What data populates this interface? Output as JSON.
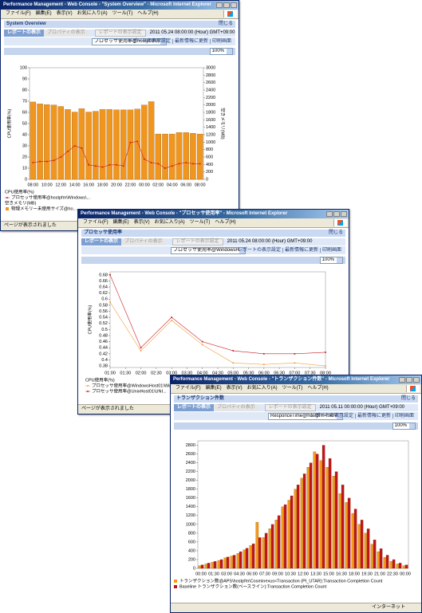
{
  "menu": [
    "ファイル(F)",
    "編集(E)",
    "表示(V)",
    "お気に入り(A)",
    "ツール(T)",
    "ヘルプ(H)"
  ],
  "windows": [
    {
      "title": "Performance Management - Web Console - \"System Overview\" - Microsoft Internet Explorer",
      "report_title": "System Overview",
      "close": "閉じる",
      "tabs": [
        "レポートの表示",
        "プロパティの表示"
      ],
      "settings_button": "レポートの表示設定",
      "datetime": "2011 05.24 08:00:00 (Hour)  GMT+09:00",
      "selector": "プロセッサ使用率@hostpfm\\Windows\\",
      "links": [
        "レポートの表示設定",
        "最新情報に更新",
        "印刷画面"
      ],
      "zoom": "100%",
      "status": "ページが表示されました"
    },
    {
      "title": "Performance Management - Web Console - \"プロセッサ使用率\" - Microsoft Internet Explorer",
      "report_title": "プロセッサ使用率",
      "close": "閉じる",
      "tabs": [
        "レポートの表示",
        "プロパティの表示"
      ],
      "settings_button": "レポートの表示設定",
      "datetime": "2011 05.24 08:00:00 (Hour)  GMT+09:00",
      "selector": "プロセッサ使用率@WindowsHost01<Wind",
      "links": [
        "レポートの表示設定",
        "最新情報に更新",
        "印刷画面"
      ],
      "zoom": "100%",
      "status": "ページが表示されました"
    },
    {
      "title": "Performance Management - Web Console - \"トランザクション件数\" - Microsoft Internet Explorer",
      "report_title": "トランザクション件数",
      "close": "閉じる",
      "tabs": [
        "レポートの表示",
        "プロパティの表示"
      ],
      "settings_button": "レポートの表示設定",
      "datetime": "2011 05.11 00:00:00 (Hour)  GMT+09:00",
      "selector": "ResponceTime@hostpfm<ServiceRes",
      "links": [
        "レポートの表示設定",
        "最新情報に更新",
        "印刷画面"
      ],
      "zoom": "100%",
      "status": "インターネット"
    }
  ],
  "chart_data": [
    {
      "type": "bar_line",
      "y_label": "CPU使用率(%)",
      "y2_label": "空きメモリ(MB)",
      "categories": [
        "08:00",
        null,
        "10:00",
        null,
        "12:00",
        null,
        "14:00",
        null,
        "16:00",
        null,
        "18:00",
        null,
        "20:00",
        null,
        "22:00",
        null,
        "00:00",
        null,
        "02:00",
        null,
        "04:00",
        null,
        "06:00",
        null,
        "08:00"
      ],
      "ylim": [
        0,
        100
      ],
      "yticks": [
        0,
        10,
        20,
        30,
        40,
        50,
        60,
        70,
        80,
        90,
        100
      ],
      "y2lim": [
        0,
        3000
      ],
      "y2ticks": [
        0,
        200,
        400,
        600,
        800,
        1000,
        1200,
        1400,
        1600,
        1800,
        2000,
        2200,
        2400,
        2600,
        2800,
        3000
      ],
      "series": [
        {
          "name": "物理メモリー未使用サイズ@ho...",
          "type": "bar",
          "axis": "y2",
          "color": "#f0961e",
          "values": [
            2080,
            2030,
            2010,
            2000,
            1960,
            1880,
            1810,
            1900,
            1810,
            1830,
            1880,
            1880,
            1870,
            1870,
            1870,
            1890,
            2000,
            2090,
            1220,
            1220,
            1220,
            1260,
            1260,
            1240,
            1220
          ]
        },
        {
          "name": "プロセッサ使用率@hostpfm\\Windows\\...",
          "type": "line",
          "color": "#d42020",
          "values": [
            15,
            16,
            16,
            17,
            20,
            25,
            30,
            28,
            13,
            12,
            11,
            13,
            13,
            12,
            33,
            34,
            18,
            15,
            14,
            10,
            12,
            14,
            15,
            14,
            14
          ]
        }
      ]
    },
    {
      "type": "line",
      "y_label": "CPU使用率(%)",
      "xlim": [
        1,
        8
      ],
      "xticks": [
        {
          "value": 1,
          "label": "01:00"
        },
        {
          "value": 1.5,
          "label": "01:30"
        },
        {
          "value": 2,
          "label": "02:00"
        },
        {
          "value": 2.5,
          "label": "02:30"
        },
        {
          "value": 3,
          "label": "03:00"
        },
        {
          "value": 3.5,
          "label": "03:30"
        },
        {
          "value": 4,
          "label": "04:00"
        },
        {
          "value": 4.5,
          "label": "04:30"
        },
        {
          "value": 5,
          "label": "05:00"
        },
        {
          "value": 5.5,
          "label": "05:30"
        },
        {
          "value": 6,
          "label": "06:00"
        },
        {
          "value": 6.5,
          "label": "06:30"
        },
        {
          "value": 7,
          "label": "07:00"
        },
        {
          "value": 7.5,
          "label": "07:30"
        },
        {
          "value": 8,
          "label": "08:00"
        }
      ],
      "ylim": [
        0.375,
        0.69
      ],
      "yticks": [
        0.38,
        0.4,
        0.42,
        0.44,
        0.46,
        0.48,
        0.5,
        0.52,
        0.54,
        0.56,
        0.58,
        0.6,
        0.62,
        0.64,
        0.66,
        0.68
      ],
      "series": [
        {
          "name": "プロセッサ使用率@WindowsHost01\\Wind...",
          "color": "#f0a040",
          "x": [
            1,
            2,
            3,
            4,
            5,
            6,
            7,
            8
          ],
          "values": [
            0.59,
            0.43,
            0.53,
            0.45,
            0.39,
            0.385,
            0.39,
            0.38
          ]
        },
        {
          "name": "プロセッサ使用率@UnixHost01\\UNI...",
          "color": "#c81e28",
          "x": [
            1,
            2,
            3,
            4,
            5,
            6,
            7,
            8
          ],
          "values": [
            0.68,
            0.44,
            0.54,
            0.46,
            0.43,
            0.42,
            0.42,
            0.425
          ]
        }
      ]
    },
    {
      "type": "bar",
      "categories": [
        "00:00",
        null,
        "01:30",
        null,
        "03:00",
        null,
        "04:30",
        null,
        "06:00",
        null,
        "07:30",
        null,
        "09:00",
        null,
        "10:30",
        null,
        "12:00",
        null,
        "13:30",
        null,
        "15:00",
        null,
        "16:30",
        null,
        "18:00",
        null,
        "19:30",
        null,
        "21:00",
        null,
        "22:30",
        null,
        "00:00"
      ],
      "ylim": [
        0,
        2900
      ],
      "yticks": [
        0,
        200,
        400,
        600,
        800,
        1000,
        1200,
        1400,
        1600,
        1800,
        2000,
        2200,
        2400,
        2600,
        2800
      ],
      "series": [
        {
          "name": "トランザクション数@APS\\hostpfm\\Cosminexus<Transaction (PI_UTAR):Transaction Completion Count",
          "color": "#f39a1c",
          "values": [
            60,
            100,
            140,
            180,
            240,
            280,
            340,
            420,
            520,
            1050,
            700,
            900,
            1100,
            1400,
            1550,
            1800,
            2050,
            2300,
            2650,
            2450,
            2300,
            2100,
            1700,
            1500,
            1250,
            1000,
            800,
            550,
            380,
            250,
            160,
            100,
            60
          ]
        },
        {
          "name": "Baseline トランザクション数(ベースライン):Transaction Completion Count",
          "color": "#c0141c",
          "values": [
            80,
            120,
            160,
            200,
            260,
            300,
            380,
            460,
            560,
            700,
            800,
            1000,
            1200,
            1450,
            1650,
            1900,
            2150,
            2400,
            2600,
            2800,
            2500,
            2200,
            1900,
            1600,
            1350,
            1100,
            900,
            650,
            450,
            300,
            200,
            120,
            80
          ]
        }
      ]
    }
  ]
}
